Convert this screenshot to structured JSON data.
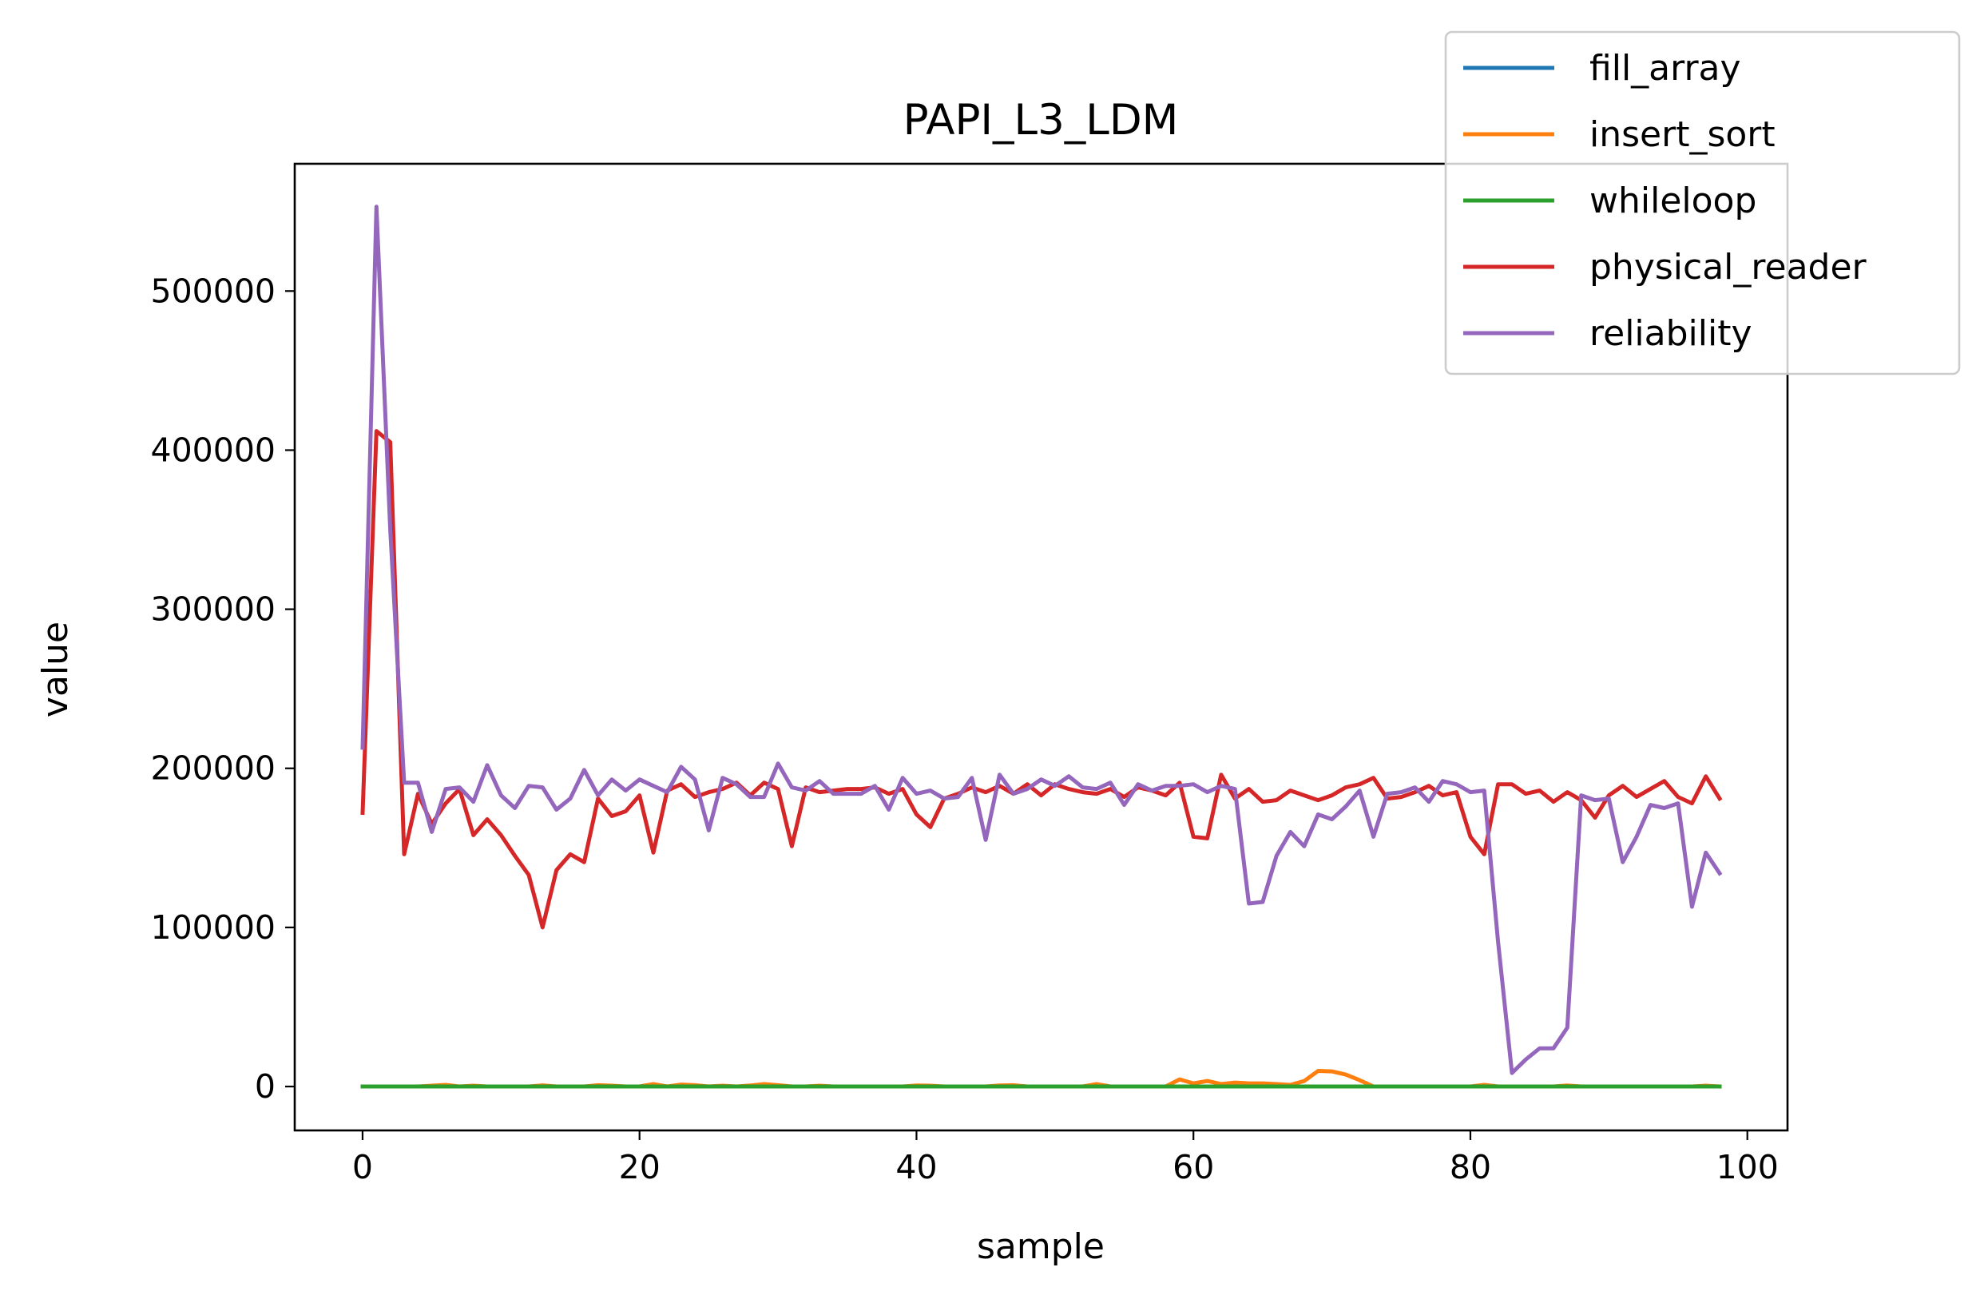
{
  "chart_data": {
    "type": "line",
    "title": "PAPI_L3_LDM",
    "xlabel": "sample",
    "ylabel": "value",
    "xlim": [
      -4.9,
      102.9
    ],
    "ylim": [
      -27600,
      580000
    ],
    "xticks": [
      0,
      20,
      40,
      60,
      80,
      100
    ],
    "yticks": [
      0,
      100000,
      200000,
      300000,
      400000,
      500000
    ],
    "xtick_labels": [
      "0",
      "20",
      "40",
      "60",
      "80",
      "100"
    ],
    "ytick_labels": [
      "0",
      "100000",
      "200000",
      "300000",
      "400000",
      "500000"
    ],
    "legend_position": "top-right",
    "grid": false,
    "series": [
      {
        "name": "fill_array",
        "color": "#1f77b4",
        "values": [
          0,
          0,
          0,
          0,
          0,
          0,
          0,
          0,
          0,
          0,
          0,
          0,
          0,
          0,
          0,
          0,
          0,
          0,
          0,
          0,
          0,
          0,
          0,
          0,
          0,
          0,
          0,
          0,
          0,
          0,
          0,
          0,
          0,
          0,
          0,
          0,
          0,
          0,
          0,
          0,
          0,
          0,
          0,
          0,
          0,
          0,
          0,
          0,
          0,
          0,
          0,
          0,
          0,
          0,
          0,
          0,
          0,
          0,
          0,
          0,
          0,
          0,
          0,
          0,
          0,
          0,
          0,
          0,
          0,
          0,
          0,
          0,
          0,
          0,
          0,
          0,
          0,
          0,
          0,
          0,
          0,
          0,
          0,
          0,
          0,
          0,
          0,
          0,
          0,
          0,
          0,
          0,
          0,
          0,
          0,
          0,
          0,
          0,
          0
        ]
      },
      {
        "name": "insert_sort",
        "color": "#ff7f0e",
        "values": [
          0,
          0,
          0,
          0,
          0,
          500,
          1000,
          0,
          500,
          0,
          0,
          0,
          0,
          700,
          0,
          0,
          0,
          800,
          500,
          0,
          0,
          1500,
          0,
          1200,
          800,
          0,
          500,
          0,
          600,
          1500,
          800,
          0,
          0,
          500,
          0,
          0,
          0,
          0,
          0,
          0,
          600,
          500,
          0,
          0,
          0,
          0,
          600,
          800,
          0,
          0,
          0,
          0,
          0,
          1500,
          0,
          0,
          0,
          0,
          0,
          4500,
          2000,
          3500,
          1500,
          2500,
          2000,
          2000,
          1500,
          1000,
          3500,
          9800,
          9500,
          7500,
          4000,
          0,
          0,
          0,
          0,
          0,
          0,
          0,
          0,
          1000,
          0,
          0,
          0,
          0,
          0,
          600,
          0,
          0,
          0,
          0,
          0,
          0,
          0,
          0,
          0,
          500,
          0
        ]
      },
      {
        "name": "whileloop",
        "color": "#2ca02c",
        "values": [
          0,
          0,
          0,
          0,
          0,
          0,
          0,
          0,
          0,
          0,
          0,
          0,
          0,
          0,
          0,
          0,
          0,
          0,
          0,
          0,
          0,
          0,
          0,
          0,
          0,
          0,
          0,
          0,
          0,
          0,
          0,
          0,
          0,
          0,
          0,
          0,
          0,
          0,
          0,
          0,
          0,
          0,
          0,
          0,
          0,
          0,
          0,
          0,
          0,
          0,
          0,
          0,
          0,
          0,
          0,
          0,
          0,
          0,
          0,
          0,
          0,
          0,
          0,
          0,
          0,
          0,
          0,
          0,
          0,
          0,
          0,
          0,
          0,
          0,
          0,
          0,
          0,
          0,
          0,
          0,
          0,
          0,
          0,
          0,
          0,
          0,
          0,
          0,
          0,
          0,
          0,
          0,
          0,
          0,
          0,
          0,
          0,
          0,
          0
        ]
      },
      {
        "name": "physical_reader",
        "color": "#d62728",
        "values": [
          172000,
          412000,
          405000,
          146000,
          184000,
          165000,
          178000,
          187000,
          158000,
          168000,
          158000,
          145000,
          133000,
          100000,
          136000,
          146000,
          141000,
          181000,
          170000,
          173000,
          183000,
          147000,
          186000,
          190000,
          182000,
          185000,
          187000,
          191000,
          183000,
          191000,
          187000,
          151000,
          188000,
          185000,
          186000,
          187000,
          187000,
          188000,
          184000,
          187000,
          171000,
          163000,
          181000,
          184000,
          188000,
          185000,
          189000,
          184000,
          190000,
          183000,
          190000,
          187000,
          185000,
          184000,
          187000,
          182000,
          188000,
          186000,
          183000,
          191000,
          157000,
          156000,
          196000,
          181000,
          187000,
          179000,
          180000,
          186000,
          183000,
          180000,
          183000,
          188000,
          190000,
          194000,
          181000,
          182000,
          185000,
          189000,
          183000,
          185000,
          157000,
          146000,
          190000,
          190000,
          184000,
          186000,
          179000,
          185000,
          180000,
          169000,
          183000,
          189000,
          182000,
          187000,
          192000,
          182000,
          178000,
          195000,
          181000
        ]
      },
      {
        "name": "reliability",
        "color": "#9467bd",
        "values": [
          213000,
          553000,
          350000,
          191000,
          191000,
          160000,
          187000,
          188000,
          179000,
          202000,
          183000,
          175000,
          189000,
          188000,
          174000,
          181000,
          199000,
          183000,
          193000,
          186000,
          193000,
          189000,
          185000,
          201000,
          193000,
          161000,
          194000,
          190000,
          182000,
          182000,
          203000,
          188000,
          186000,
          192000,
          184000,
          184000,
          184000,
          189000,
          174000,
          194000,
          184000,
          186000,
          181000,
          182000,
          194000,
          155000,
          196000,
          184000,
          187000,
          193000,
          189000,
          195000,
          188000,
          187000,
          191000,
          177000,
          190000,
          186000,
          189000,
          189000,
          190000,
          185000,
          189000,
          187000,
          115000,
          116000,
          145000,
          160000,
          151000,
          171000,
          168000,
          176000,
          186000,
          157000,
          184000,
          185000,
          188000,
          179000,
          192000,
          190000,
          185000,
          186000,
          91000,
          8500,
          17000,
          24000,
          24000,
          37000,
          183000,
          180000,
          181000,
          141000,
          157000,
          177000,
          175000,
          178000,
          113000,
          147000,
          134000
        ]
      }
    ]
  }
}
